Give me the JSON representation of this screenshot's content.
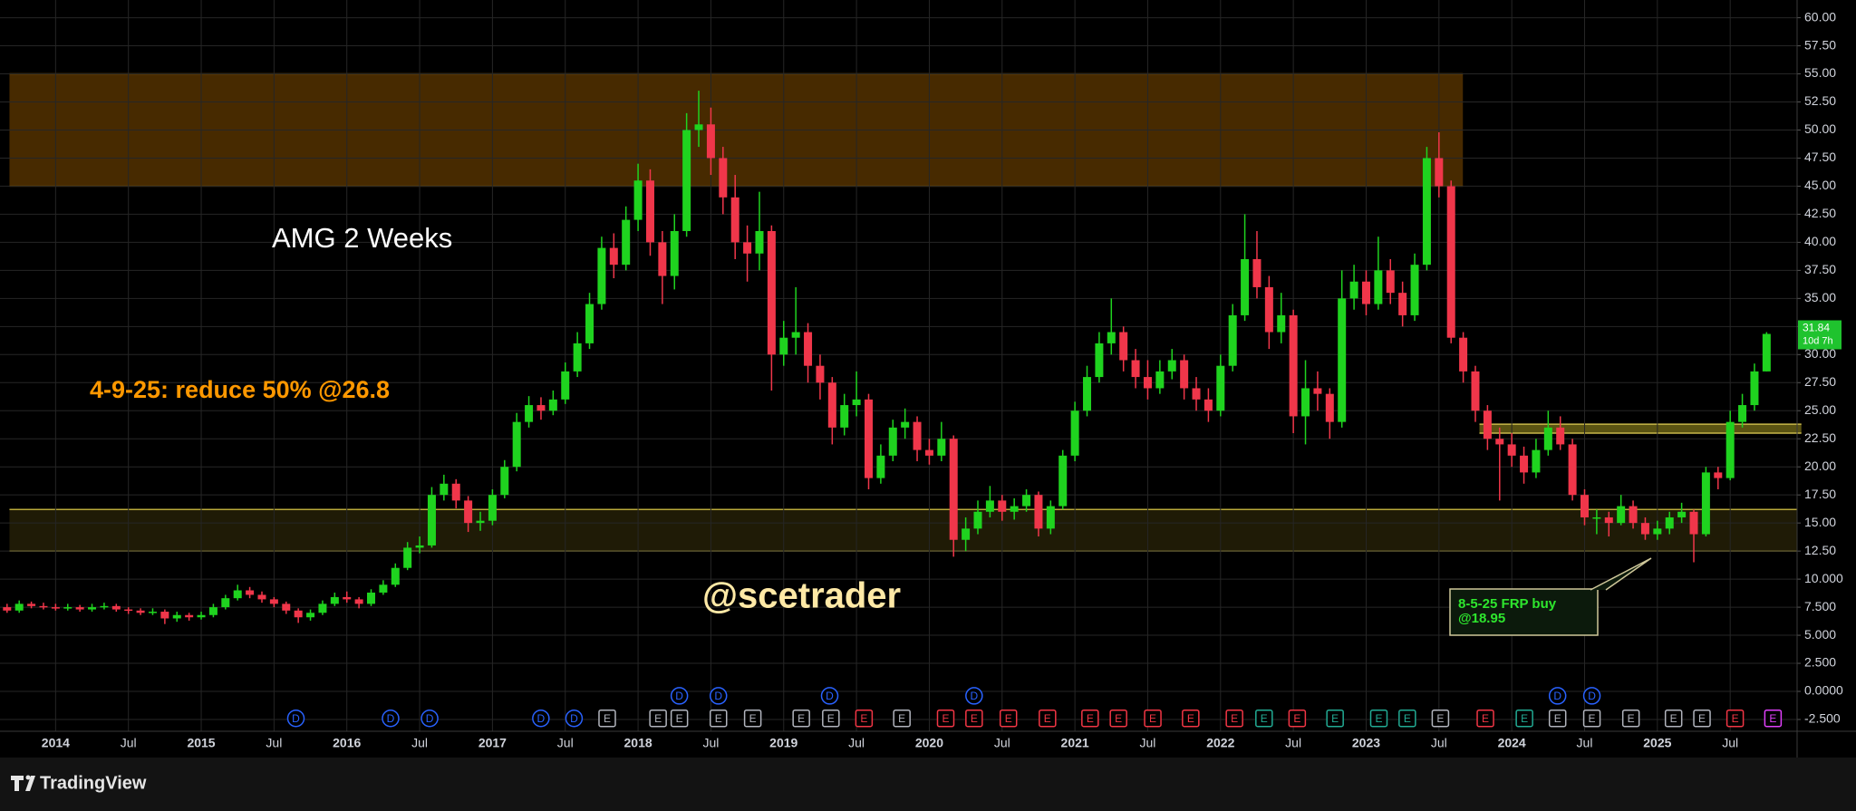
{
  "chart_data": {
    "type": "candlestick",
    "title": "AMG 2 Weeks",
    "annotations": [
      "4-9-25: reduce 50% @26.8",
      "@scetrader"
    ],
    "callout": [
      "8-5-25 FRP buy",
      "@18.95"
    ],
    "last_price": 31.84,
    "countdown": "10d 7h",
    "up_color": "#1fd31f",
    "down_color": "#f0364a",
    "grid": true,
    "categories": [
      null,
      null,
      null,
      null,
      "2014",
      null,
      null,
      null,
      null,
      null,
      "Jul",
      null,
      null,
      null,
      null,
      null,
      "2015",
      null,
      null,
      null,
      null,
      null,
      "Jul",
      null,
      null,
      null,
      null,
      null,
      "2016",
      null,
      null,
      null,
      null,
      null,
      "Jul",
      null,
      null,
      null,
      null,
      null,
      "2017",
      null,
      null,
      null,
      null,
      null,
      "Jul",
      null,
      null,
      null,
      null,
      null,
      "2018",
      null,
      null,
      null,
      null,
      null,
      "Jul",
      null,
      null,
      null,
      null,
      null,
      "2019",
      null,
      null,
      null,
      null,
      null,
      "Jul",
      null,
      null,
      null,
      null,
      null,
      "2020",
      null,
      null,
      null,
      null,
      null,
      "Jul",
      null,
      null,
      null,
      null,
      null,
      "2021",
      null,
      null,
      null,
      null,
      null,
      "Jul",
      null,
      null,
      null,
      null,
      null,
      "2022",
      null,
      null,
      null,
      null,
      null,
      "Jul",
      null,
      null,
      null,
      null,
      null,
      "2023",
      null,
      null,
      null,
      null,
      null,
      "Jul",
      null,
      null,
      null,
      null,
      null,
      "2024",
      null,
      null,
      null,
      null,
      null,
      "Jul",
      null,
      null,
      null,
      null,
      null,
      "2025",
      null,
      null,
      null,
      null,
      null,
      "Jul",
      null,
      null,
      null
    ],
    "open": [
      7.5,
      7.2,
      7.8,
      7.6,
      7.5,
      7.4,
      7.5,
      7.3,
      7.5,
      7.6,
      7.3,
      7.2,
      7.0,
      7.1,
      6.5,
      6.8,
      6.6,
      6.8,
      7.5,
      8.3,
      9.0,
      8.6,
      8.2,
      7.8,
      7.2,
      6.6,
      7.0,
      7.8,
      8.4,
      8.2,
      7.8,
      8.8,
      9.5,
      11.0,
      12.8,
      13.0,
      17.5,
      18.5,
      17.0,
      15.0,
      15.2,
      17.5,
      20.0,
      24.0,
      25.5,
      25.0,
      26.0,
      28.5,
      31.0,
      34.5,
      39.5,
      38.0,
      42.0,
      45.5,
      40.0,
      37.0,
      41.0,
      50.0,
      50.5,
      47.5,
      44.0,
      40.0,
      39.0,
      41.0,
      30.0,
      31.5,
      32.0,
      29.0,
      27.5,
      23.5,
      25.5,
      26.0,
      19.0,
      21.0,
      23.5,
      24.0,
      21.5,
      21.0,
      22.5,
      13.5,
      14.5,
      16.0,
      17.0,
      16.0,
      16.5,
      17.5,
      14.5,
      16.5,
      21.0,
      25.0,
      28.0,
      31.0,
      32.0,
      29.5,
      28.0,
      27.0,
      28.5,
      29.5,
      27.0,
      26.0,
      25.0,
      29.0,
      33.5,
      38.5,
      36.0,
      32.0,
      33.5,
      24.5,
      27.0,
      26.5,
      24.0,
      35.0,
      36.5,
      34.5,
      37.5,
      35.5,
      33.5,
      38.0,
      47.5,
      45.0,
      31.5,
      28.5,
      25.0,
      22.5,
      22.0,
      21.0,
      19.5,
      21.5,
      23.5,
      22.0,
      17.5,
      15.5,
      15.5,
      15.0,
      16.5,
      15.0,
      14.0,
      14.5,
      15.5,
      16.0,
      14.0,
      19.5,
      19.0,
      24.0,
      25.5,
      28.5
    ],
    "high": [
      7.8,
      8.1,
      8.0,
      7.9,
      7.8,
      7.8,
      7.7,
      7.8,
      7.9,
      7.8,
      7.5,
      7.4,
      7.4,
      7.3,
      7.1,
      7.0,
      7.1,
      7.8,
      8.6,
      9.5,
      9.3,
      8.9,
      8.4,
      8.0,
      7.4,
      7.3,
      8.1,
      8.8,
      8.9,
      8.4,
      9.1,
      9.9,
      11.4,
      13.3,
      13.8,
      18.2,
      19.3,
      18.9,
      17.4,
      16.0,
      18.0,
      20.6,
      24.8,
      26.3,
      26.2,
      26.8,
      29.3,
      32.0,
      35.5,
      40.5,
      40.8,
      43.2,
      47.0,
      46.5,
      41.0,
      42.5,
      51.5,
      53.5,
      52.0,
      48.5,
      46.0,
      41.5,
      44.5,
      41.5,
      33.0,
      36.0,
      32.8,
      30.0,
      28.0,
      26.5,
      28.5,
      26.5,
      22.0,
      24.2,
      25.2,
      24.5,
      22.5,
      24.0,
      22.8,
      15.5,
      17.0,
      18.3,
      17.5,
      17.2,
      18.0,
      17.8,
      17.0,
      21.5,
      25.8,
      29.0,
      32.0,
      35.0,
      32.5,
      30.5,
      29.5,
      29.5,
      30.5,
      30.0,
      28.0,
      27.0,
      30.0,
      34.5,
      42.5,
      41.0,
      37.0,
      35.5,
      34.0,
      29.5,
      28.5,
      27.0,
      37.5,
      38.0,
      37.5,
      40.5,
      38.5,
      36.5,
      39.0,
      48.5,
      49.8,
      45.5,
      32.0,
      29.0,
      25.5,
      23.5,
      23.0,
      21.8,
      22.5,
      25.0,
      24.5,
      22.5,
      18.0,
      16.2,
      16.0,
      17.5,
      17.0,
      15.5,
      15.2,
      16.0,
      16.8,
      16.2,
      20.0,
      20.0,
      25.0,
      26.5,
      29.2,
      32.0
    ],
    "low": [
      7.0,
      7.0,
      7.4,
      7.3,
      7.2,
      7.2,
      7.1,
      7.1,
      7.3,
      7.1,
      6.9,
      6.8,
      6.8,
      6.0,
      6.2,
      6.3,
      6.4,
      6.6,
      7.3,
      8.1,
      8.3,
      7.9,
      7.5,
      6.9,
      6.1,
      6.3,
      6.8,
      7.6,
      7.9,
      7.4,
      7.6,
      8.6,
      9.3,
      10.8,
      12.3,
      12.8,
      17.0,
      16.3,
      14.2,
      14.3,
      14.8,
      17.2,
      19.6,
      23.5,
      24.2,
      24.6,
      25.6,
      28.0,
      30.5,
      34.0,
      36.8,
      37.5,
      41.0,
      38.8,
      34.5,
      35.8,
      40.5,
      48.5,
      46.0,
      42.5,
      38.5,
      36.5,
      37.5,
      26.8,
      29.0,
      30.0,
      27.5,
      26.0,
      22.0,
      22.8,
      24.5,
      18.0,
      18.5,
      20.5,
      22.5,
      20.5,
      20.2,
      20.5,
      12.0,
      12.5,
      14.0,
      15.5,
      15.2,
      15.3,
      16.0,
      13.8,
      14.0,
      16.2,
      20.5,
      24.5,
      27.5,
      30.0,
      28.5,
      27.0,
      26.0,
      26.5,
      27.8,
      26.0,
      25.0,
      24.0,
      24.5,
      28.5,
      33.0,
      35.0,
      30.5,
      31.0,
      23.0,
      22.0,
      25.0,
      22.5,
      23.5,
      34.0,
      33.5,
      34.0,
      34.5,
      32.5,
      33.0,
      37.5,
      44.0,
      31.0,
      27.5,
      24.0,
      21.5,
      17.0,
      20.0,
      18.5,
      19.0,
      21.0,
      21.5,
      17.0,
      14.8,
      14.0,
      13.8,
      14.8,
      14.5,
      13.5,
      13.5,
      14.0,
      15.0,
      11.5,
      13.8,
      18.0,
      18.8,
      23.5,
      25.0,
      28.5
    ],
    "close": [
      7.2,
      7.8,
      7.6,
      7.5,
      7.4,
      7.5,
      7.3,
      7.5,
      7.6,
      7.3,
      7.2,
      7.0,
      7.1,
      6.5,
      6.8,
      6.6,
      6.8,
      7.5,
      8.3,
      9.0,
      8.6,
      8.2,
      7.8,
      7.2,
      6.6,
      7.0,
      7.8,
      8.4,
      8.2,
      7.8,
      8.8,
      9.5,
      11.0,
      12.8,
      13.0,
      17.5,
      18.5,
      17.0,
      15.0,
      15.2,
      17.5,
      20.0,
      24.0,
      25.5,
      25.0,
      26.0,
      28.5,
      31.0,
      34.5,
      39.5,
      38.0,
      42.0,
      45.5,
      40.0,
      37.0,
      41.0,
      50.0,
      50.5,
      47.5,
      44.0,
      40.0,
      39.0,
      41.0,
      30.0,
      31.5,
      32.0,
      29.0,
      27.5,
      23.5,
      25.5,
      26.0,
      19.0,
      21.0,
      23.5,
      24.0,
      21.5,
      21.0,
      22.5,
      13.5,
      14.5,
      16.0,
      17.0,
      16.0,
      16.5,
      17.5,
      14.5,
      16.5,
      21.0,
      25.0,
      28.0,
      31.0,
      32.0,
      29.5,
      28.0,
      27.0,
      28.5,
      29.5,
      27.0,
      26.0,
      25.0,
      29.0,
      33.5,
      38.5,
      36.0,
      32.0,
      33.5,
      24.5,
      27.0,
      26.5,
      24.0,
      35.0,
      36.5,
      34.5,
      37.5,
      35.5,
      33.5,
      38.0,
      47.5,
      45.0,
      31.5,
      28.5,
      25.0,
      22.5,
      22.0,
      21.0,
      19.5,
      21.5,
      23.5,
      22.0,
      17.5,
      15.5,
      15.5,
      15.0,
      16.5,
      15.0,
      14.0,
      14.5,
      15.5,
      16.0,
      14.0,
      19.5,
      19.0,
      24.0,
      25.5,
      28.5,
      31.84
    ],
    "ylim": [
      -3.55,
      61.58
    ],
    "yticks": [
      {
        "value": 60,
        "label": "60.00"
      },
      {
        "value": 57.5,
        "label": "57.50"
      },
      {
        "value": 55,
        "label": "55.00"
      },
      {
        "value": 52.5,
        "label": "52.50"
      },
      {
        "value": 50,
        "label": "50.00"
      },
      {
        "value": 47.5,
        "label": "47.50"
      },
      {
        "value": 45,
        "label": "45.00"
      },
      {
        "value": 42.5,
        "label": "42.50"
      },
      {
        "value": 40,
        "label": "40.00"
      },
      {
        "value": 37.5,
        "label": "37.50"
      },
      {
        "value": 35,
        "label": "35.00"
      },
      {
        "value": 32.5,
        "label": "32.50"
      },
      {
        "value": 30,
        "label": "30.00"
      },
      {
        "value": 27.5,
        "label": "27.50"
      },
      {
        "value": 25,
        "label": "25.00"
      },
      {
        "value": 22.5,
        "label": "22.50"
      },
      {
        "value": 20,
        "label": "20.00"
      },
      {
        "value": 17.5,
        "label": "17.50"
      },
      {
        "value": 15,
        "label": "15.00"
      },
      {
        "value": 12.5,
        "label": "12.50"
      },
      {
        "value": 10,
        "label": "10.000"
      },
      {
        "value": 7.5,
        "label": "7.500"
      },
      {
        "value": 5,
        "label": "5.000"
      },
      {
        "value": 2.5,
        "label": "2.500"
      },
      {
        "value": 0,
        "label": "0.0000"
      },
      {
        "value": -2.5,
        "label": "-2.500"
      }
    ],
    "zones": [
      {
        "low": 45,
        "high": 55,
        "color": "rgba(255,152,0,0.28)",
        "border": "#7a4f00"
      },
      {
        "low": 12.5,
        "high": 16.2,
        "color": "rgba(190,170,40,0.16)",
        "border": "#b8a83a"
      },
      {
        "low": 23,
        "high": 23.8,
        "color": "rgba(200,185,40,0.45)",
        "border": "#c8b84a"
      }
    ],
    "events": [
      {
        "label": "D",
        "color": "#2962ff"
      },
      {
        "label": "D",
        "color": "#2962ff"
      },
      {
        "label": "D",
        "color": "#2962ff"
      },
      {
        "label": "D",
        "color": "#2962ff"
      },
      {
        "label": "D",
        "color": "#2962ff"
      },
      {
        "label": "E",
        "color": "#b2b5be"
      },
      {
        "label": "E",
        "color": "#b2b5be"
      },
      {
        "label": "E",
        "color": "#b2b5be"
      },
      {
        "label": "E",
        "color": "#b2b5be"
      },
      {
        "label": "E",
        "color": "#b2b5be"
      },
      {
        "label": "E",
        "color": "#b2b5be"
      },
      {
        "label": "E",
        "color": "#b2b5be"
      },
      {
        "label": "E",
        "color": "#f23645"
      },
      {
        "label": "E",
        "color": "#b2b5be"
      },
      {
        "label": "E",
        "color": "#f23645"
      },
      {
        "label": "E",
        "color": "#f23645"
      },
      {
        "label": "E",
        "color": "#f23645"
      },
      {
        "label": "E",
        "color": "#f23645"
      },
      {
        "label": "E",
        "color": "#f23645"
      },
      {
        "label": "E",
        "color": "#f23645"
      },
      {
        "label": "E",
        "color": "#f23645"
      },
      {
        "label": "E",
        "color": "#f23645"
      },
      {
        "label": "E",
        "color": "#f23645"
      },
      {
        "label": "E",
        "color": "#22ab94"
      },
      {
        "label": "E",
        "color": "#f23645"
      },
      {
        "label": "E",
        "color": "#22ab94"
      },
      {
        "label": "E",
        "color": "#22ab94"
      },
      {
        "label": "E",
        "color": "#22ab94"
      },
      {
        "label": "E",
        "color": "#b2b5be"
      },
      {
        "label": "E",
        "color": "#f23645"
      },
      {
        "label": "E",
        "color": "#22ab94"
      },
      {
        "label": "E",
        "color": "#b2b5be"
      },
      {
        "label": "E",
        "color": "#b2b5be"
      },
      {
        "label": "E",
        "color": "#b2b5be"
      },
      {
        "label": "E",
        "color": "#b2b5be"
      },
      {
        "label": "E",
        "color": "#b2b5be"
      },
      {
        "label": "E",
        "color": "#f23645"
      },
      {
        "label": "E",
        "color": "#e040fb"
      },
      {
        "label": "D",
        "color": "#2962ff"
      },
      {
        "label": "D",
        "color": "#2962ff"
      },
      {
        "label": "D",
        "color": "#2962ff"
      },
      {
        "label": "D",
        "color": "#2962ff"
      },
      {
        "label": "D",
        "color": "#2962ff"
      },
      {
        "label": "D",
        "color": "#2962ff"
      }
    ]
  },
  "footer": {
    "brand": "TradingView"
  }
}
